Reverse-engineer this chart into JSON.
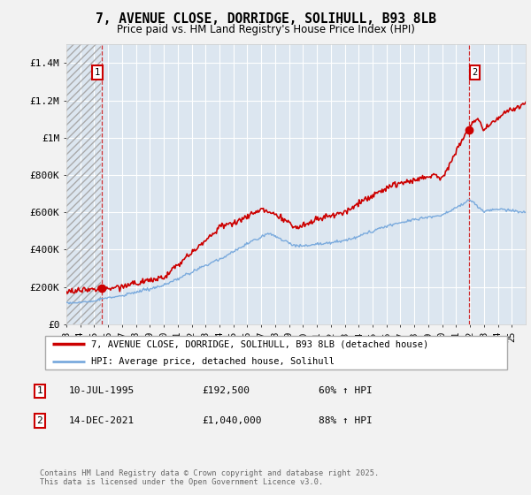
{
  "title": "7, AVENUE CLOSE, DORRIDGE, SOLIHULL, B93 8LB",
  "subtitle": "Price paid vs. HM Land Registry's House Price Index (HPI)",
  "ylim": [
    0,
    1500000
  ],
  "yticks": [
    0,
    200000,
    400000,
    600000,
    800000,
    1000000,
    1200000,
    1400000
  ],
  "ytick_labels": [
    "£0",
    "£200K",
    "£400K",
    "£600K",
    "£800K",
    "£1M",
    "£1.2M",
    "£1.4M"
  ],
  "x_start_year": 1993,
  "x_end_year": 2026,
  "property_color": "#cc0000",
  "hpi_color": "#7aaadd",
  "sale1_year": 1995.53,
  "sale1_price": 192500,
  "sale2_year": 2021.95,
  "sale2_price": 1040000,
  "legend_property": "7, AVENUE CLOSE, DORRIDGE, SOLIHULL, B93 8LB (detached house)",
  "legend_hpi": "HPI: Average price, detached house, Solihull",
  "annotation1_label": "1",
  "annotation1_date": "10-JUL-1995",
  "annotation1_price": "£192,500",
  "annotation1_hpi": "60% ↑ HPI",
  "annotation2_label": "2",
  "annotation2_date": "14-DEC-2021",
  "annotation2_price": "£1,040,000",
  "annotation2_hpi": "88% ↑ HPI",
  "footer": "Contains HM Land Registry data © Crown copyright and database right 2025.\nThis data is licensed under the Open Government Licence v3.0.",
  "background_color": "#f2f2f2",
  "plot_bg_color": "#dce6f0"
}
